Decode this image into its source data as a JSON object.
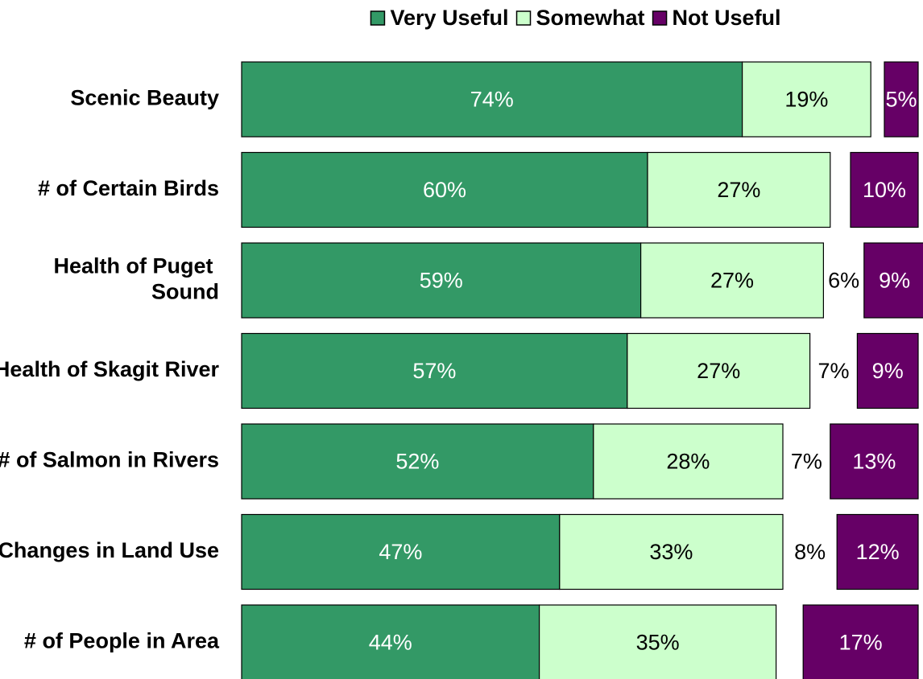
{
  "chart_data": {
    "type": "stacked-bar",
    "orientation": "horizontal",
    "categories": [
      "Scenic Beauty",
      "# of Certain Birds",
      "Health of Puget Sound",
      "Health of Skagit River",
      "# of Salmon in Rivers",
      "Changes in Land Use",
      "# of People in Area"
    ],
    "xlim": [
      0,
      100
    ],
    "series": [
      {
        "name": "Very Useful",
        "color": "#339966",
        "label_color": "#ffffff",
        "values": [
          74,
          60,
          59,
          57,
          52,
          47,
          44
        ],
        "value_labels": [
          "74%",
          "60%",
          "59%",
          "57%",
          "52%",
          "47%",
          "44%"
        ]
      },
      {
        "name": "Somewhat",
        "color": "#ccffcc",
        "label_color": "#000000",
        "values": [
          19,
          27,
          27,
          27,
          28,
          33,
          35
        ],
        "value_labels": [
          "19%",
          "27%",
          "27%",
          "27%",
          "28%",
          "33%",
          "35%"
        ]
      },
      {
        "color": "none",
        "label_color": "#000000",
        "values": [
          2,
          3,
          6,
          7,
          7,
          8,
          4
        ],
        "value_labels": [
          null,
          null,
          "6%",
          "7%",
          "7%",
          "8%",
          null
        ]
      },
      {
        "name": "Not Useful",
        "color": "#660066",
        "label_color": "#ffffff",
        "values": [
          5,
          10,
          9,
          9,
          13,
          12,
          17
        ],
        "value_labels": [
          "5%",
          "10%",
          "9%",
          "9%",
          "13%",
          "12%",
          "17%"
        ]
      }
    ],
    "legend": "top"
  }
}
